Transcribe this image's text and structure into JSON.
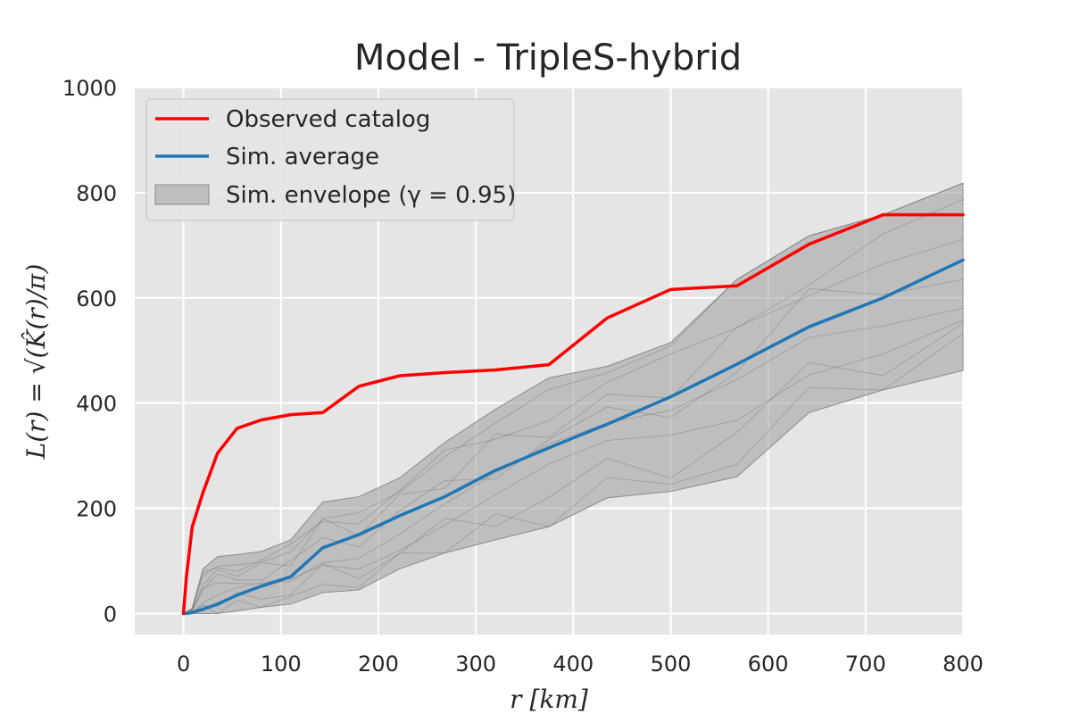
{
  "chart_data": {
    "type": "line",
    "title": "Model - TripleS-hybrid",
    "xlabel": "r  [km]",
    "ylabel": "L(r) = √(K̂(r)/π)",
    "xlim": [
      -50,
      800
    ],
    "ylim": [
      -40,
      1000
    ],
    "xticks": [
      0,
      100,
      200,
      300,
      400,
      500,
      600,
      700,
      800
    ],
    "yticks": [
      0,
      200,
      400,
      600,
      800,
      1000
    ],
    "grid": true,
    "legend_position": "top-left",
    "x": [
      0,
      3,
      9,
      20,
      35,
      55,
      80,
      110,
      143,
      180,
      222,
      268,
      320,
      375,
      435,
      500,
      568,
      642,
      718,
      800
    ],
    "series": [
      {
        "name": "Observed catalog",
        "color": "#ff0000",
        "values": [
          0,
          70,
          165,
          230,
          305,
          352,
          368,
          378,
          382,
          432,
          452,
          458,
          463,
          473,
          562,
          616,
          623,
          702,
          758,
          758
        ]
      },
      {
        "name": "Sim. average",
        "color": "#1f77b4",
        "values": [
          0,
          0,
          2,
          8,
          18,
          35,
          52,
          70,
          125,
          150,
          186,
          222,
          272,
          315,
          360,
          412,
          474,
          545,
          600,
          672
        ]
      }
    ],
    "envelope": {
      "name": "Sim. envelope (γ = 0.95)",
      "color": "#9e9e9e",
      "x": [
        0,
        9,
        20,
        35,
        55,
        80,
        110,
        143,
        180,
        222,
        268,
        320,
        375,
        435,
        500,
        568,
        642,
        718,
        800
      ],
      "lower": [
        0,
        0,
        0,
        0,
        5,
        12,
        18,
        40,
        45,
        85,
        115,
        140,
        165,
        220,
        232,
        260,
        382,
        425,
        462
      ],
      "upper": [
        0,
        10,
        85,
        108,
        112,
        118,
        140,
        212,
        222,
        258,
        325,
        388,
        448,
        470,
        515,
        635,
        718,
        758,
        818
      ]
    }
  }
}
